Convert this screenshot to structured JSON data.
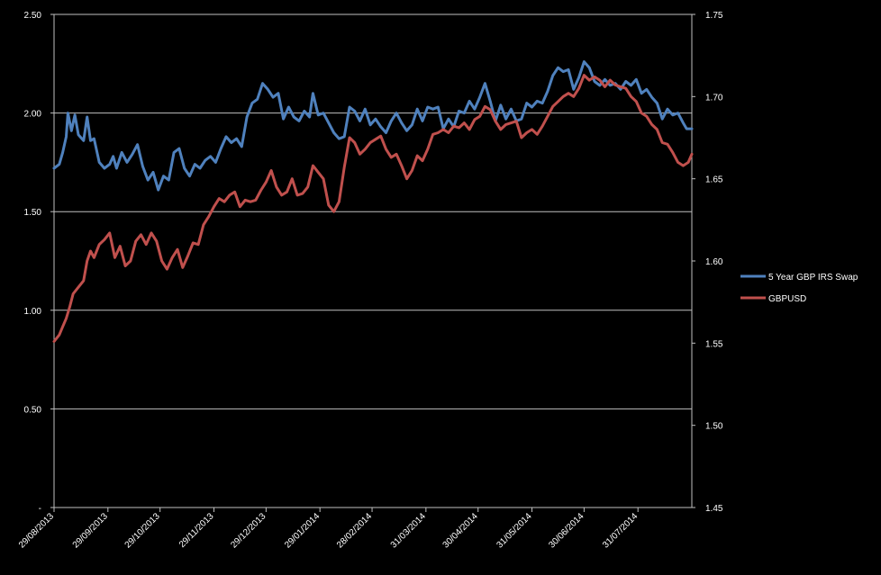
{
  "chart_data": {
    "type": "line",
    "title": "",
    "xlabel": "",
    "ylabel": "",
    "x_ticks": [
      "29/08/2013",
      "29/09/2013",
      "29/10/2013",
      "29/11/2013",
      "29/12/2013",
      "29/01/2014",
      "28/02/2014",
      "31/03/2014",
      "30/04/2014",
      "31/05/2014",
      "30/06/2014",
      "31/07/2014"
    ],
    "x_range": [
      "2013-08-29",
      "2014-08-31"
    ],
    "y_left": {
      "ticks": [
        "-",
        "0.50",
        "1.00",
        "1.50",
        "2.00",
        "2.50"
      ],
      "min": 0,
      "max": 2.5
    },
    "y_right": {
      "ticks": [
        "1.45",
        "1.50",
        "1.55",
        "1.60",
        "1.65",
        "1.70",
        "1.75"
      ],
      "min": 1.45,
      "max": 1.75
    },
    "grid": "horizontal",
    "legend_position": "right",
    "series": [
      {
        "name": "5 Year GBP IRS Swap",
        "axis": "left",
        "color": "#4f81bd",
        "points": [
          [
            "2013-08-29",
            1.72
          ],
          [
            "2013-09-01",
            1.74
          ],
          [
            "2013-09-03",
            1.8
          ],
          [
            "2013-09-05",
            1.88
          ],
          [
            "2013-09-06",
            2.0
          ],
          [
            "2013-09-08",
            1.91
          ],
          [
            "2013-09-10",
            1.99
          ],
          [
            "2013-09-12",
            1.89
          ],
          [
            "2013-09-15",
            1.86
          ],
          [
            "2013-09-17",
            1.98
          ],
          [
            "2013-09-19",
            1.86
          ],
          [
            "2013-09-21",
            1.87
          ],
          [
            "2013-09-24",
            1.75
          ],
          [
            "2013-09-27",
            1.72
          ],
          [
            "2013-09-30",
            1.74
          ],
          [
            "2013-10-02",
            1.78
          ],
          [
            "2013-10-04",
            1.72
          ],
          [
            "2013-10-07",
            1.8
          ],
          [
            "2013-10-10",
            1.75
          ],
          [
            "2013-10-13",
            1.79
          ],
          [
            "2013-10-16",
            1.84
          ],
          [
            "2013-10-19",
            1.73
          ],
          [
            "2013-10-22",
            1.66
          ],
          [
            "2013-10-25",
            1.7
          ],
          [
            "2013-10-28",
            1.61
          ],
          [
            "2013-10-31",
            1.68
          ],
          [
            "2013-11-03",
            1.66
          ],
          [
            "2013-11-06",
            1.8
          ],
          [
            "2013-11-09",
            1.82
          ],
          [
            "2013-11-12",
            1.72
          ],
          [
            "2013-11-15",
            1.68
          ],
          [
            "2013-11-18",
            1.74
          ],
          [
            "2013-11-21",
            1.72
          ],
          [
            "2013-11-24",
            1.76
          ],
          [
            "2013-11-27",
            1.78
          ],
          [
            "2013-11-30",
            1.75
          ],
          [
            "2013-12-03",
            1.82
          ],
          [
            "2013-12-06",
            1.88
          ],
          [
            "2013-12-09",
            1.85
          ],
          [
            "2013-12-12",
            1.87
          ],
          [
            "2013-12-15",
            1.83
          ],
          [
            "2013-12-18",
            1.98
          ],
          [
            "2013-12-21",
            2.05
          ],
          [
            "2013-12-24",
            2.07
          ],
          [
            "2013-12-27",
            2.15
          ],
          [
            "2013-12-30",
            2.12
          ],
          [
            "2014-01-02",
            2.08
          ],
          [
            "2014-01-05",
            2.1
          ],
          [
            "2014-01-08",
            1.97
          ],
          [
            "2014-01-11",
            2.03
          ],
          [
            "2014-01-14",
            1.98
          ],
          [
            "2014-01-17",
            1.96
          ],
          [
            "2014-01-20",
            2.01
          ],
          [
            "2014-01-23",
            1.98
          ],
          [
            "2014-01-25",
            2.1
          ],
          [
            "2014-01-28",
            1.99
          ],
          [
            "2014-01-31",
            2.0
          ],
          [
            "2014-02-03",
            1.95
          ],
          [
            "2014-02-06",
            1.9
          ],
          [
            "2014-02-09",
            1.87
          ],
          [
            "2014-02-12",
            1.88
          ],
          [
            "2014-02-15",
            2.03
          ],
          [
            "2014-02-18",
            2.01
          ],
          [
            "2014-02-21",
            1.96
          ],
          [
            "2014-02-24",
            2.02
          ],
          [
            "2014-02-27",
            1.94
          ],
          [
            "2014-03-02",
            1.97
          ],
          [
            "2014-03-05",
            1.93
          ],
          [
            "2014-03-08",
            1.9
          ],
          [
            "2014-03-11",
            1.96
          ],
          [
            "2014-03-14",
            2.0
          ],
          [
            "2014-03-17",
            1.95
          ],
          [
            "2014-03-20",
            1.91
          ],
          [
            "2014-03-23",
            1.94
          ],
          [
            "2014-03-26",
            2.02
          ],
          [
            "2014-03-29",
            1.96
          ],
          [
            "2014-04-01",
            2.03
          ],
          [
            "2014-04-04",
            2.02
          ],
          [
            "2014-04-07",
            2.03
          ],
          [
            "2014-04-10",
            1.92
          ],
          [
            "2014-04-13",
            1.97
          ],
          [
            "2014-04-16",
            1.93
          ],
          [
            "2014-04-19",
            2.01
          ],
          [
            "2014-04-22",
            2.0
          ],
          [
            "2014-04-25",
            2.06
          ],
          [
            "2014-04-28",
            2.02
          ],
          [
            "2014-05-01",
            2.08
          ],
          [
            "2014-05-04",
            2.15
          ],
          [
            "2014-05-07",
            2.06
          ],
          [
            "2014-05-10",
            1.96
          ],
          [
            "2014-05-13",
            2.04
          ],
          [
            "2014-05-16",
            1.97
          ],
          [
            "2014-05-19",
            2.02
          ],
          [
            "2014-05-22",
            1.96
          ],
          [
            "2014-05-25",
            1.97
          ],
          [
            "2014-05-28",
            2.05
          ],
          [
            "2014-05-31",
            2.03
          ],
          [
            "2014-06-03",
            2.06
          ],
          [
            "2014-06-06",
            2.05
          ],
          [
            "2014-06-09",
            2.11
          ],
          [
            "2014-06-12",
            2.19
          ],
          [
            "2014-06-15",
            2.23
          ],
          [
            "2014-06-18",
            2.21
          ],
          [
            "2014-06-21",
            2.22
          ],
          [
            "2014-06-24",
            2.12
          ],
          [
            "2014-06-27",
            2.18
          ],
          [
            "2014-06-30",
            2.26
          ],
          [
            "2014-07-03",
            2.23
          ],
          [
            "2014-07-06",
            2.16
          ],
          [
            "2014-07-09",
            2.14
          ],
          [
            "2014-07-12",
            2.17
          ],
          [
            "2014-07-15",
            2.14
          ],
          [
            "2014-07-18",
            2.15
          ],
          [
            "2014-07-21",
            2.12
          ],
          [
            "2014-07-24",
            2.16
          ],
          [
            "2014-07-27",
            2.14
          ],
          [
            "2014-07-30",
            2.17
          ],
          [
            "2014-08-02",
            2.1
          ],
          [
            "2014-08-05",
            2.12
          ],
          [
            "2014-08-08",
            2.08
          ],
          [
            "2014-08-11",
            2.05
          ],
          [
            "2014-08-14",
            1.97
          ],
          [
            "2014-08-17",
            2.02
          ],
          [
            "2014-08-20",
            1.99
          ],
          [
            "2014-08-23",
            2.0
          ],
          [
            "2014-08-26",
            1.95
          ],
          [
            "2014-08-28",
            1.92
          ],
          [
            "2014-08-31",
            1.92
          ]
        ]
      },
      {
        "name": "GBPUSD",
        "axis": "right",
        "color": "#c0504d",
        "points": [
          [
            "2013-08-29",
            1.551
          ],
          [
            "2013-09-01",
            1.555
          ],
          [
            "2013-09-03",
            1.56
          ],
          [
            "2013-09-05",
            1.565
          ],
          [
            "2013-09-07",
            1.572
          ],
          [
            "2013-09-09",
            1.58
          ],
          [
            "2013-09-12",
            1.584
          ],
          [
            "2013-09-15",
            1.588
          ],
          [
            "2013-09-17",
            1.6
          ],
          [
            "2013-09-19",
            1.606
          ],
          [
            "2013-09-21",
            1.602
          ],
          [
            "2013-09-24",
            1.61
          ],
          [
            "2013-09-27",
            1.613
          ],
          [
            "2013-09-30",
            1.617
          ],
          [
            "2013-10-03",
            1.602
          ],
          [
            "2013-10-06",
            1.609
          ],
          [
            "2013-10-09",
            1.597
          ],
          [
            "2013-10-12",
            1.6
          ],
          [
            "2013-10-15",
            1.612
          ],
          [
            "2013-10-18",
            1.616
          ],
          [
            "2013-10-21",
            1.61
          ],
          [
            "2013-10-24",
            1.617
          ],
          [
            "2013-10-27",
            1.612
          ],
          [
            "2013-10-30",
            1.6
          ],
          [
            "2013-11-02",
            1.595
          ],
          [
            "2013-11-05",
            1.602
          ],
          [
            "2013-11-08",
            1.607
          ],
          [
            "2013-11-11",
            1.596
          ],
          [
            "2013-11-14",
            1.603
          ],
          [
            "2013-11-17",
            1.611
          ],
          [
            "2013-11-20",
            1.61
          ],
          [
            "2013-11-23",
            1.622
          ],
          [
            "2013-11-26",
            1.627
          ],
          [
            "2013-11-29",
            1.633
          ],
          [
            "2013-12-02",
            1.638
          ],
          [
            "2013-12-05",
            1.636
          ],
          [
            "2013-12-08",
            1.64
          ],
          [
            "2013-12-11",
            1.642
          ],
          [
            "2013-12-14",
            1.633
          ],
          [
            "2013-12-17",
            1.637
          ],
          [
            "2013-12-20",
            1.636
          ],
          [
            "2013-12-23",
            1.637
          ],
          [
            "2013-12-26",
            1.643
          ],
          [
            "2013-12-29",
            1.648
          ],
          [
            "2014-01-01",
            1.655
          ],
          [
            "2014-01-04",
            1.645
          ],
          [
            "2014-01-07",
            1.64
          ],
          [
            "2014-01-10",
            1.642
          ],
          [
            "2014-01-13",
            1.65
          ],
          [
            "2014-01-16",
            1.64
          ],
          [
            "2014-01-19",
            1.641
          ],
          [
            "2014-01-22",
            1.645
          ],
          [
            "2014-01-25",
            1.658
          ],
          [
            "2014-01-28",
            1.654
          ],
          [
            "2014-01-31",
            1.65
          ],
          [
            "2014-02-03",
            1.634
          ],
          [
            "2014-02-06",
            1.63
          ],
          [
            "2014-02-09",
            1.636
          ],
          [
            "2014-02-12",
            1.657
          ],
          [
            "2014-02-15",
            1.675
          ],
          [
            "2014-02-18",
            1.672
          ],
          [
            "2014-02-21",
            1.665
          ],
          [
            "2014-02-24",
            1.668
          ],
          [
            "2014-02-27",
            1.672
          ],
          [
            "2014-03-02",
            1.674
          ],
          [
            "2014-03-05",
            1.676
          ],
          [
            "2014-03-08",
            1.668
          ],
          [
            "2014-03-11",
            1.663
          ],
          [
            "2014-03-14",
            1.665
          ],
          [
            "2014-03-17",
            1.658
          ],
          [
            "2014-03-20",
            1.65
          ],
          [
            "2014-03-23",
            1.655
          ],
          [
            "2014-03-26",
            1.664
          ],
          [
            "2014-03-29",
            1.661
          ],
          [
            "2014-04-01",
            1.668
          ],
          [
            "2014-04-04",
            1.677
          ],
          [
            "2014-04-07",
            1.678
          ],
          [
            "2014-04-10",
            1.68
          ],
          [
            "2014-04-13",
            1.678
          ],
          [
            "2014-04-16",
            1.682
          ],
          [
            "2014-04-19",
            1.681
          ],
          [
            "2014-04-22",
            1.684
          ],
          [
            "2014-04-25",
            1.68
          ],
          [
            "2014-04-28",
            1.686
          ],
          [
            "2014-05-01",
            1.688
          ],
          [
            "2014-05-04",
            1.694
          ],
          [
            "2014-05-07",
            1.692
          ],
          [
            "2014-05-10",
            1.685
          ],
          [
            "2014-05-13",
            1.68
          ],
          [
            "2014-05-16",
            1.683
          ],
          [
            "2014-05-19",
            1.684
          ],
          [
            "2014-05-22",
            1.685
          ],
          [
            "2014-05-25",
            1.675
          ],
          [
            "2014-05-28",
            1.678
          ],
          [
            "2014-05-31",
            1.68
          ],
          [
            "2014-06-03",
            1.677
          ],
          [
            "2014-06-06",
            1.682
          ],
          [
            "2014-06-09",
            1.688
          ],
          [
            "2014-06-12",
            1.694
          ],
          [
            "2014-06-15",
            1.697
          ],
          [
            "2014-06-18",
            1.7
          ],
          [
            "2014-06-21",
            1.702
          ],
          [
            "2014-06-24",
            1.7
          ],
          [
            "2014-06-27",
            1.705
          ],
          [
            "2014-06-30",
            1.713
          ],
          [
            "2014-07-03",
            1.71
          ],
          [
            "2014-07-06",
            1.712
          ],
          [
            "2014-07-09",
            1.71
          ],
          [
            "2014-07-12",
            1.706
          ],
          [
            "2014-07-15",
            1.71
          ],
          [
            "2014-07-18",
            1.707
          ],
          [
            "2014-07-21",
            1.706
          ],
          [
            "2014-07-24",
            1.705
          ],
          [
            "2014-07-27",
            1.7
          ],
          [
            "2014-07-30",
            1.697
          ],
          [
            "2014-08-02",
            1.69
          ],
          [
            "2014-08-05",
            1.688
          ],
          [
            "2014-08-08",
            1.683
          ],
          [
            "2014-08-11",
            1.68
          ],
          [
            "2014-08-14",
            1.672
          ],
          [
            "2014-08-17",
            1.671
          ],
          [
            "2014-08-20",
            1.666
          ],
          [
            "2014-08-23",
            1.66
          ],
          [
            "2014-08-26",
            1.658
          ],
          [
            "2014-08-29",
            1.66
          ],
          [
            "2014-08-31",
            1.665
          ]
        ]
      }
    ]
  }
}
